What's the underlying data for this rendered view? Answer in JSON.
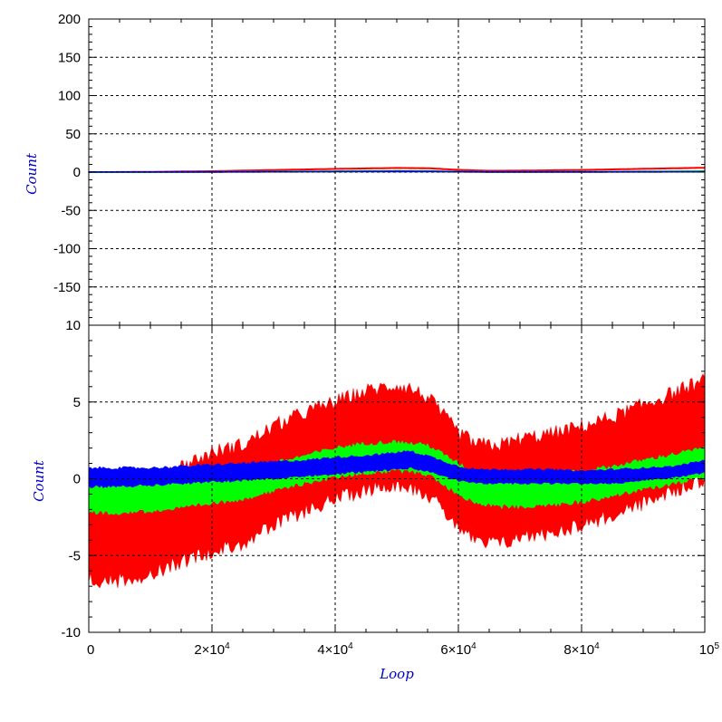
{
  "chart_data": [
    {
      "id": "top",
      "type": "line",
      "title": "",
      "xlabel": "",
      "ylabel": "Count",
      "xlim": [
        0,
        100000
      ],
      "ylim": [
        -200,
        200
      ],
      "grid": true,
      "legend": "none",
      "yticks": [
        {
          "v": 200,
          "label": "200"
        },
        {
          "v": 150,
          "label": "150"
        },
        {
          "v": 100,
          "label": "100"
        },
        {
          "v": 50,
          "label": "50"
        },
        {
          "v": 0,
          "label": "0"
        },
        {
          "v": -50,
          "label": "-50"
        },
        {
          "v": -100,
          "label": "-100"
        },
        {
          "v": -150,
          "label": "-150"
        }
      ],
      "x": [
        0,
        10000,
        20000,
        30000,
        40000,
        50000,
        55000,
        60000,
        65000,
        70000,
        80000,
        90000,
        100000
      ],
      "series": [
        {
          "color": "#ff0000",
          "upper": [
            0.3,
            0.8,
            1.7,
            3.2,
            4.7,
            5.9,
            5.6,
            3.4,
            2.2,
            2.4,
            3.3,
            4.8,
            6.2
          ],
          "lower": [
            -0.1,
            0.2,
            0.9,
            2.2,
            3.7,
            4.9,
            4.6,
            2.4,
            1.2,
            1.4,
            2.3,
            3.8,
            5.2
          ]
        },
        {
          "color": "#00ff00",
          "upper": [
            0.1,
            0.2,
            0.6,
            1.1,
            1.6,
            2.1,
            1.9,
            1.0,
            0.5,
            0.5,
            0.8,
            1.3,
            1.8
          ],
          "lower": [
            -0.4,
            -0.3,
            0.0,
            0.4,
            0.9,
            1.3,
            1.1,
            0.3,
            -0.1,
            -0.1,
            0.2,
            0.6,
            1.1
          ]
        },
        {
          "color": "#0000ff",
          "upper": [
            0.5,
            0.5,
            0.6,
            0.8,
            1.0,
            1.3,
            1.2,
            0.8,
            0.6,
            0.6,
            0.6,
            0.7,
            0.9
          ],
          "lower": [
            -0.3,
            -0.2,
            -0.1,
            0.1,
            0.3,
            0.5,
            0.4,
            0.1,
            -0.1,
            -0.1,
            -0.1,
            0.0,
            0.2
          ]
        }
      ]
    },
    {
      "id": "bottom",
      "type": "line",
      "title": "",
      "xlabel": "Loop",
      "ylabel": "Count",
      "xlim": [
        0,
        100000
      ],
      "ylim": [
        -10,
        10
      ],
      "grid": true,
      "legend": "none",
      "yticks": [
        {
          "v": 10,
          "label": "10"
        },
        {
          "v": 5,
          "label": "5"
        },
        {
          "v": 0,
          "label": "0"
        },
        {
          "v": -5,
          "label": "-5"
        },
        {
          "v": -10,
          "label": "-10"
        }
      ],
      "xticks": [
        {
          "v": 0,
          "mant": "0",
          "exp": ""
        },
        {
          "v": 20000,
          "mant": "2×10",
          "exp": "4"
        },
        {
          "v": 40000,
          "mant": "4×10",
          "exp": "4"
        },
        {
          "v": 60000,
          "mant": "6×10",
          "exp": "4"
        },
        {
          "v": 80000,
          "mant": "8×10",
          "exp": "4"
        },
        {
          "v": 100000,
          "mant": "10",
          "exp": "5"
        }
      ],
      "x": [
        0,
        5000,
        10000,
        15000,
        20000,
        25000,
        30000,
        35000,
        40000,
        45000,
        50000,
        52000,
        55000,
        60000,
        63000,
        67000,
        70000,
        75000,
        80000,
        85000,
        90000,
        95000,
        100000
      ],
      "series": [
        {
          "color": "#ff0000",
          "upper": [
            -0.3,
            -0.3,
            0.0,
            0.8,
            1.7,
            2.2,
            3.4,
            4.3,
            5.0,
            5.7,
            6.1,
            5.9,
            5.3,
            3.0,
            2.2,
            2.2,
            2.6,
            2.9,
            3.4,
            4.0,
            4.8,
            5.6,
            6.4
          ],
          "lower": [
            -6.6,
            -6.6,
            -6.2,
            -5.4,
            -4.7,
            -4.2,
            -3.1,
            -2.1,
            -1.3,
            -0.7,
            -0.3,
            -0.5,
            -1.0,
            -3.1,
            -4.2,
            -4.2,
            -3.8,
            -3.5,
            -3.0,
            -2.4,
            -1.6,
            -0.8,
            0.0
          ]
        },
        {
          "color": "#00ff00",
          "upper": [
            -0.4,
            -0.4,
            -0.3,
            -0.1,
            0.3,
            0.6,
            1.0,
            1.5,
            2.0,
            2.3,
            2.4,
            2.3,
            2.2,
            1.0,
            0.3,
            0.2,
            0.2,
            0.3,
            0.5,
            0.8,
            1.2,
            1.6,
            2.0
          ],
          "lower": [
            -2.2,
            -2.2,
            -2.1,
            -1.9,
            -1.6,
            -1.3,
            -0.8,
            -0.3,
            0.1,
            0.4,
            0.5,
            0.5,
            0.3,
            -1.0,
            -1.6,
            -1.8,
            -1.8,
            -1.7,
            -1.5,
            -1.1,
            -0.7,
            -0.3,
            0.1
          ]
        },
        {
          "color": "#0000ff",
          "upper": [
            0.7,
            0.7,
            0.7,
            0.8,
            0.9,
            1.0,
            1.1,
            1.2,
            1.4,
            1.5,
            1.7,
            1.8,
            1.5,
            0.8,
            0.6,
            0.6,
            0.6,
            0.6,
            0.5,
            0.6,
            0.7,
            0.8,
            1.2
          ],
          "lower": [
            -0.5,
            -0.5,
            -0.4,
            -0.3,
            -0.2,
            -0.1,
            0.0,
            0.2,
            0.3,
            0.5,
            0.6,
            0.7,
            0.5,
            -0.1,
            -0.3,
            -0.3,
            -0.3,
            -0.3,
            -0.3,
            -0.3,
            -0.1,
            0.1,
            0.4
          ]
        }
      ]
    }
  ]
}
